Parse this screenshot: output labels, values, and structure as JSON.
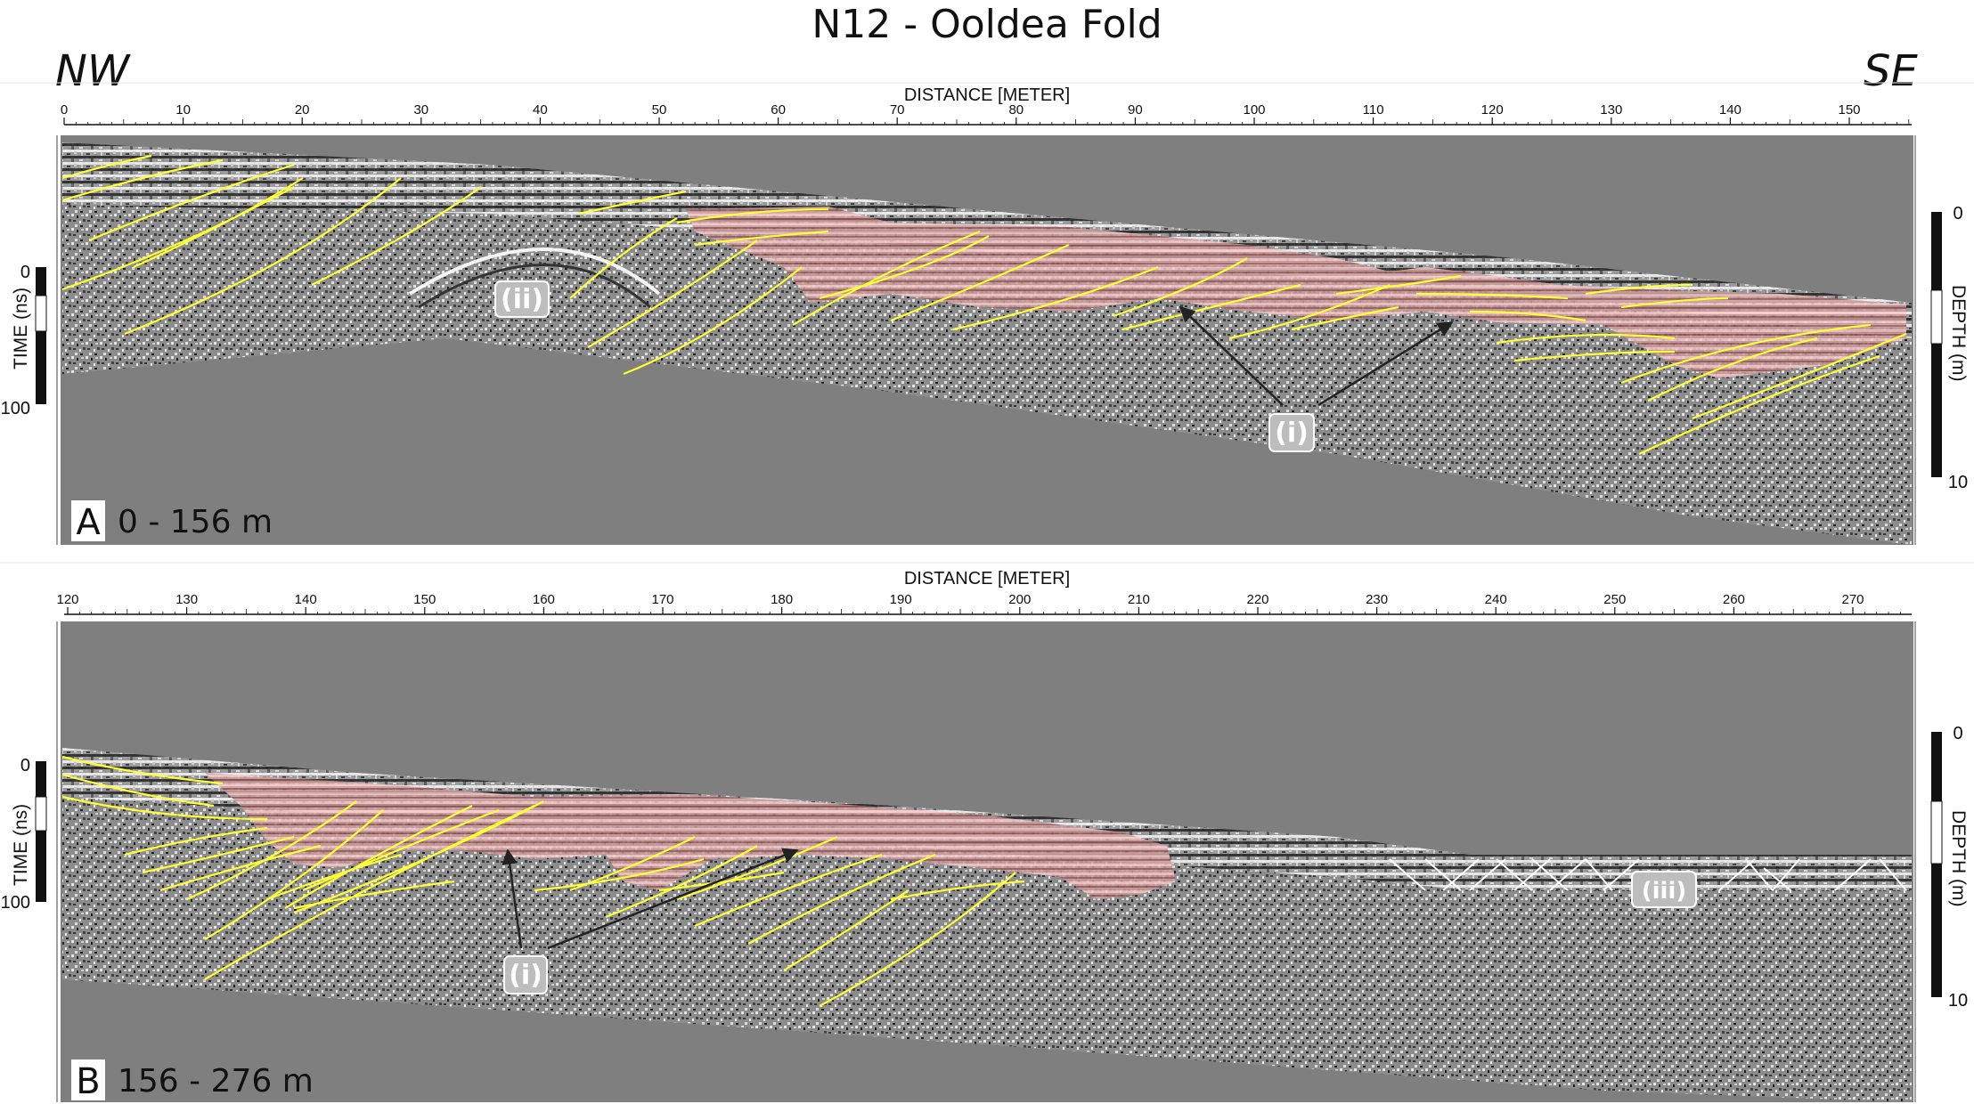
{
  "figure": {
    "title": "N12 - Ooldea Fold",
    "direction_left": "NW",
    "direction_right": "SE",
    "colors": {
      "background_gray": "#7f7f7f",
      "reflector_lines": "#ffff33",
      "shaded_unit": "#e08080",
      "fault_lines": "#ffffff",
      "annotation_arrows": "#222222"
    }
  },
  "panels": [
    {
      "letter": "A",
      "range_label": "0 - 156 m",
      "x_axis_title": "DISTANCE [METER]",
      "x_ticks": [
        "0",
        "10",
        "20",
        "30",
        "40",
        "50",
        "60",
        "70",
        "80",
        "90",
        "100",
        "110",
        "120",
        "130",
        "140",
        "150"
      ],
      "left_scale_title": "TIME (ns)",
      "left_scale_ticks": [
        "0",
        "100"
      ],
      "right_scale_title": "DEPTH (m)",
      "right_scale_ticks": [
        "0",
        "10"
      ],
      "annotations": [
        "(ii)",
        "(i)"
      ]
    },
    {
      "letter": "B",
      "range_label": "156 - 276 m",
      "x_axis_title": "DISTANCE [METER]",
      "x_ticks": [
        "120",
        "130",
        "140",
        "150",
        "160",
        "170",
        "180",
        "190",
        "200",
        "210",
        "220",
        "230",
        "240",
        "250",
        "260",
        "270"
      ],
      "left_scale_title": "TIME (ns)",
      "left_scale_ticks": [
        "0",
        "100"
      ],
      "right_scale_title": "DEPTH (m)",
      "right_scale_ticks": [
        "0",
        "10"
      ],
      "annotations": [
        "(i)",
        "(iii)"
      ]
    }
  ]
}
